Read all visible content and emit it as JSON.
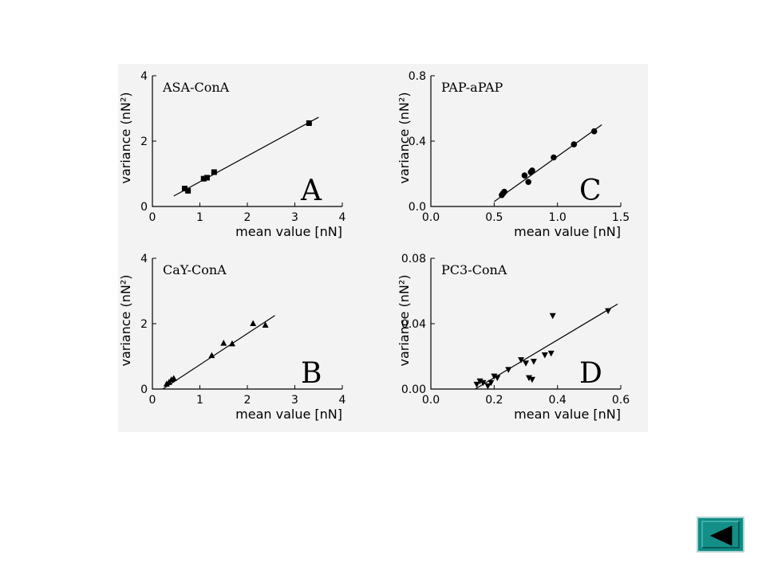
{
  "chart_data": [
    {
      "type": "scatter",
      "panel": "A",
      "title": "ASA-ConA",
      "letter": "A",
      "marker": "square",
      "xlabel": "mean value [nN]",
      "ylabel": "variance (nN²)",
      "xlim": [
        0,
        4
      ],
      "ylim": [
        0,
        4
      ],
      "xticks": [
        "0",
        "1",
        "2",
        "3",
        "4"
      ],
      "yticks": [
        "0",
        "2",
        "4"
      ],
      "xtick_values": [
        0,
        1,
        2,
        3,
        4
      ],
      "ytick_values": [
        0,
        2,
        4
      ],
      "points": [
        {
          "x": 0.68,
          "y": 0.55
        },
        {
          "x": 0.75,
          "y": 0.48
        },
        {
          "x": 1.08,
          "y": 0.85
        },
        {
          "x": 1.15,
          "y": 0.88
        },
        {
          "x": 1.3,
          "y": 1.05
        },
        {
          "x": 3.3,
          "y": 2.55
        }
      ],
      "fit": {
        "x": [
          0.45,
          3.5
        ],
        "y": [
          0.32,
          2.73
        ]
      }
    },
    {
      "type": "scatter",
      "panel": "C",
      "title": "PAP-aPAP",
      "letter": "C",
      "marker": "circle",
      "xlabel": "mean value [nN]",
      "ylabel": "variance (nN²)",
      "xlim": [
        0,
        1.5
      ],
      "ylim": [
        0,
        0.8
      ],
      "xticks": [
        "0.0",
        "0.5",
        "1.0",
        "1.5"
      ],
      "yticks": [
        "0.0",
        "0.4",
        "0.8"
      ],
      "xtick_values": [
        0,
        0.5,
        1.0,
        1.5
      ],
      "ytick_values": [
        0,
        0.4,
        0.8
      ],
      "points": [
        {
          "x": 0.56,
          "y": 0.07
        },
        {
          "x": 0.57,
          "y": 0.08
        },
        {
          "x": 0.58,
          "y": 0.09
        },
        {
          "x": 0.74,
          "y": 0.19
        },
        {
          "x": 0.77,
          "y": 0.15
        },
        {
          "x": 0.79,
          "y": 0.21
        },
        {
          "x": 0.8,
          "y": 0.22
        },
        {
          "x": 0.97,
          "y": 0.3
        },
        {
          "x": 1.13,
          "y": 0.38
        },
        {
          "x": 1.29,
          "y": 0.46
        }
      ],
      "fit": {
        "x": [
          0.5,
          1.35
        ],
        "y": [
          0.03,
          0.5
        ]
      }
    },
    {
      "type": "scatter",
      "panel": "B",
      "title": "CaY-ConA",
      "letter": "B",
      "marker": "triangle-up",
      "xlabel": "mean value [nN]",
      "ylabel": "variance (nN²)",
      "xlim": [
        0,
        4
      ],
      "ylim": [
        0,
        4
      ],
      "xticks": [
        "0",
        "1",
        "2",
        "3",
        "4"
      ],
      "yticks": [
        "0",
        "2",
        "4"
      ],
      "xtick_values": [
        0,
        1,
        2,
        3,
        4
      ],
      "ytick_values": [
        0,
        2,
        4
      ],
      "points": [
        {
          "x": 0.3,
          "y": 0.15
        },
        {
          "x": 0.35,
          "y": 0.2
        },
        {
          "x": 0.4,
          "y": 0.28
        },
        {
          "x": 0.45,
          "y": 0.32
        },
        {
          "x": 1.25,
          "y": 1.02
        },
        {
          "x": 1.5,
          "y": 1.4
        },
        {
          "x": 1.68,
          "y": 1.38
        },
        {
          "x": 2.12,
          "y": 2.0
        },
        {
          "x": 2.38,
          "y": 1.95
        }
      ],
      "fit": {
        "x": [
          0.22,
          2.58
        ],
        "y": [
          0.0,
          2.25
        ]
      }
    },
    {
      "type": "scatter",
      "panel": "D",
      "title": "PC3-ConA",
      "letter": "D",
      "marker": "triangle-down",
      "xlabel": "mean value [nN]",
      "ylabel": "variance (nN²)",
      "xlim": [
        0.0,
        0.6
      ],
      "ylim": [
        0.0,
        0.08
      ],
      "xticks": [
        "0.0",
        "0.2",
        "0.4",
        "0.6"
      ],
      "yticks": [
        "0.00",
        "0.04",
        "0.08"
      ],
      "xtick_values": [
        0,
        0.2,
        0.4,
        0.6
      ],
      "ytick_values": [
        0,
        0.04,
        0.08
      ],
      "points": [
        {
          "x": 0.145,
          "y": 0.003
        },
        {
          "x": 0.155,
          "y": 0.005
        },
        {
          "x": 0.165,
          "y": 0.004
        },
        {
          "x": 0.18,
          "y": 0.002
        },
        {
          "x": 0.19,
          "y": 0.004
        },
        {
          "x": 0.2,
          "y": 0.008
        },
        {
          "x": 0.21,
          "y": 0.007
        },
        {
          "x": 0.245,
          "y": 0.012
        },
        {
          "x": 0.285,
          "y": 0.018
        },
        {
          "x": 0.3,
          "y": 0.016
        },
        {
          "x": 0.31,
          "y": 0.007
        },
        {
          "x": 0.32,
          "y": 0.006
        },
        {
          "x": 0.325,
          "y": 0.017
        },
        {
          "x": 0.36,
          "y": 0.021
        },
        {
          "x": 0.38,
          "y": 0.022
        },
        {
          "x": 0.385,
          "y": 0.045
        },
        {
          "x": 0.56,
          "y": 0.048
        }
      ],
      "fit": {
        "x": [
          0.14,
          0.59
        ],
        "y": [
          0.0,
          0.052
        ]
      }
    }
  ],
  "navigation": {
    "back_icon": "triangle-left-icon",
    "back_color": "#0f8b84"
  }
}
